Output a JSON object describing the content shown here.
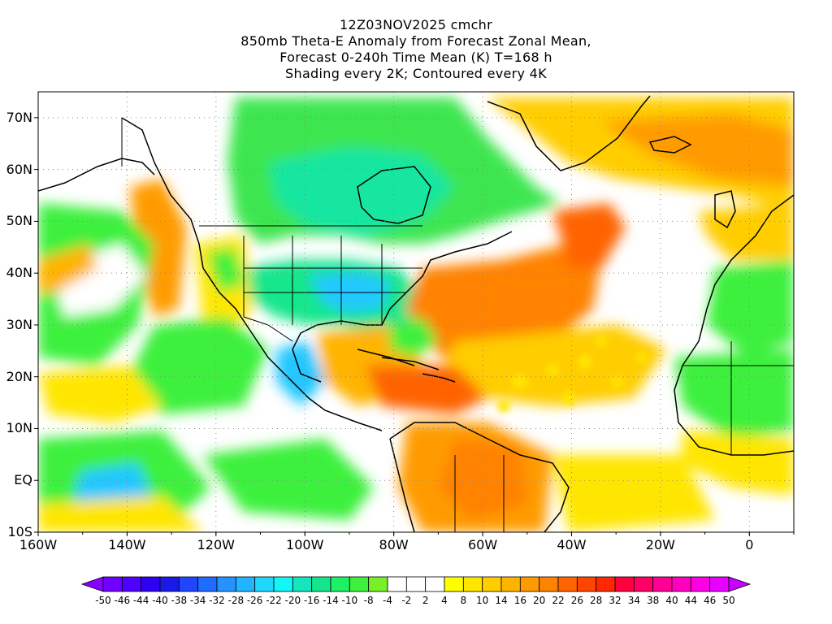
{
  "title_lines": [
    "12Z03NOV2025 cmchr",
    "850mb Theta-E Anomaly from Forecast Zonal Mean,",
    "Forecast 0-240h Time Mean (K) T=168 h",
    "Shading every 2K; Contoured every 4K"
  ],
  "lat_labels": [
    {
      "label": "70N",
      "lat": 70
    },
    {
      "label": "60N",
      "lat": 60
    },
    {
      "label": "50N",
      "lat": 50
    },
    {
      "label": "40N",
      "lat": 40
    },
    {
      "label": "30N",
      "lat": 30
    },
    {
      "label": "20N",
      "lat": 20
    },
    {
      "label": "10N",
      "lat": 10
    },
    {
      "label": "EQ",
      "lat": 0
    },
    {
      "label": "10S",
      "lat": -10
    }
  ],
  "lon_labels": [
    {
      "label": "160W",
      "lon": -160
    },
    {
      "label": "140W",
      "lon": -140
    },
    {
      "label": "120W",
      "lon": -120
    },
    {
      "label": "100W",
      "lon": -100
    },
    {
      "label": "80W",
      "lon": -80
    },
    {
      "label": "60W",
      "lon": -60
    },
    {
      "label": "40W",
      "lon": -40
    },
    {
      "label": "20W",
      "lon": -20
    },
    {
      "label": "0",
      "lon": 0
    }
  ],
  "map_extent": {
    "lon_min": -160,
    "lon_max": 10,
    "lat_min": -10,
    "lat_max": 75
  },
  "colorbar": {
    "labels": [
      "-50",
      "-46",
      "-44",
      "-40",
      "-38",
      "-34",
      "-32",
      "-28",
      "-26",
      "-22",
      "-20",
      "-16",
      "-14",
      "-10",
      "-8",
      "-4",
      "-2",
      "2",
      "4",
      "8",
      "10",
      "14",
      "16",
      "20",
      "22",
      "26",
      "28",
      "32",
      "34",
      "38",
      "40",
      "44",
      "46",
      "50"
    ],
    "colors": [
      "#8a00ff",
      "#7000ff",
      "#5000ff",
      "#3000f0",
      "#1a1ae6",
      "#1f45ff",
      "#1f6bff",
      "#2593ff",
      "#22b4ff",
      "#1fd7ff",
      "#14f5f5",
      "#14e6be",
      "#14e68c",
      "#1ef064",
      "#3cf03c",
      "#78f028",
      "#ffffff",
      "#ffffff",
      "#ffffff",
      "#ffff00",
      "#ffe600",
      "#ffcd00",
      "#ffb400",
      "#ff9b00",
      "#ff8200",
      "#ff6400",
      "#ff4600",
      "#ff2800",
      "#ff0040",
      "#ff0064",
      "#ff0096",
      "#ff00be",
      "#ff00e6",
      "#e600ff",
      "#c800ff"
    ]
  }
}
